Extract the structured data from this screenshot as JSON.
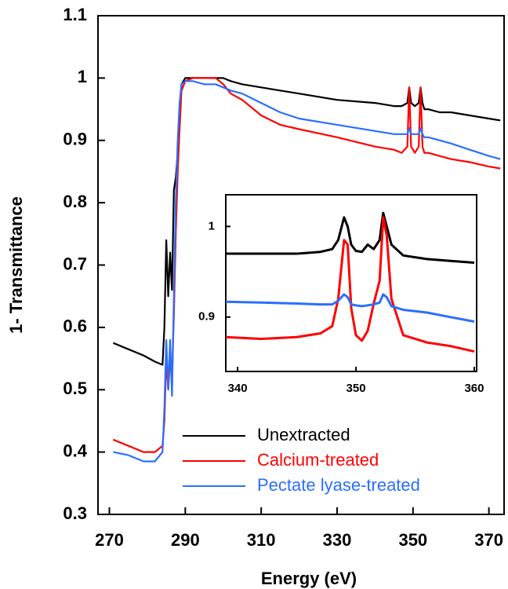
{
  "chart_data": [
    {
      "type": "line",
      "xlabel": "Energy (eV)",
      "ylabel": "1- Transmittance",
      "xlim": [
        267,
        374
      ],
      "ylim": [
        0.3,
        1.1
      ],
      "xticks": [
        270,
        290,
        310,
        330,
        350,
        370
      ],
      "yticks": [
        0.3,
        0.4,
        0.5,
        0.6,
        0.7,
        0.8,
        0.9,
        1,
        1.1
      ],
      "legend": "lower right",
      "x": [
        271,
        275,
        279,
        282,
        284,
        284.5,
        285,
        285.5,
        286,
        286.5,
        287,
        287.5,
        288,
        288.5,
        289,
        290,
        292,
        295,
        298,
        300,
        302,
        305,
        310,
        315,
        320,
        330,
        340,
        345,
        347,
        348.5,
        349,
        349.5,
        350.5,
        351.5,
        352,
        352.5,
        353,
        354,
        357,
        360,
        365,
        370,
        373
      ],
      "series": [
        {
          "name": "Unextracted",
          "color": "#000000",
          "values": [
            0.575,
            0.565,
            0.555,
            0.545,
            0.54,
            0.6,
            0.74,
            0.65,
            0.72,
            0.66,
            0.82,
            0.84,
            0.88,
            0.95,
            0.99,
            1.0,
            1.0,
            1.0,
            1.0,
            1.0,
            0.995,
            0.99,
            0.985,
            0.98,
            0.975,
            0.965,
            0.96,
            0.955,
            0.955,
            0.96,
            0.985,
            0.96,
            0.955,
            0.96,
            0.985,
            0.96,
            0.95,
            0.95,
            0.945,
            0.945,
            0.94,
            0.935,
            0.932
          ]
        },
        {
          "name": "Calcium-treated",
          "color": "#ff0000",
          "values": [
            0.42,
            0.41,
            0.4,
            0.4,
            0.41,
            0.45,
            0.55,
            0.5,
            0.55,
            0.52,
            0.62,
            0.75,
            0.85,
            0.92,
            0.98,
            0.995,
            1.0,
            1.0,
            1.0,
            0.99,
            0.975,
            0.965,
            0.94,
            0.925,
            0.918,
            0.905,
            0.89,
            0.885,
            0.88,
            0.89,
            0.985,
            0.89,
            0.88,
            0.89,
            0.985,
            0.89,
            0.88,
            0.88,
            0.875,
            0.87,
            0.865,
            0.858,
            0.855
          ]
        },
        {
          "name": "Pectate lyase-treated",
          "color": "#2a6fff",
          "values": [
            0.4,
            0.395,
            0.385,
            0.385,
            0.4,
            0.47,
            0.58,
            0.5,
            0.58,
            0.49,
            0.65,
            0.8,
            0.9,
            0.96,
            0.99,
            0.995,
            0.995,
            0.99,
            0.99,
            0.985,
            0.98,
            0.975,
            0.96,
            0.945,
            0.935,
            0.925,
            0.915,
            0.91,
            0.91,
            0.91,
            0.92,
            0.91,
            0.91,
            0.91,
            0.92,
            0.91,
            0.905,
            0.905,
            0.9,
            0.895,
            0.885,
            0.875,
            0.87
          ]
        }
      ]
    },
    {
      "type": "line",
      "xlim": [
        339,
        360.2
      ],
      "ylim": [
        0.84,
        1.035
      ],
      "xticks": [
        340,
        350,
        360
      ],
      "yticks": [
        0.9,
        1
      ],
      "x": [
        339,
        342,
        345,
        347,
        348,
        348.5,
        349,
        349.3,
        349.6,
        350,
        350.5,
        351,
        351.5,
        352,
        352.3,
        352.6,
        353,
        354,
        356,
        358,
        360
      ],
      "series": [
        {
          "color": "#000000",
          "values": [
            0.97,
            0.97,
            0.97,
            0.972,
            0.975,
            0.985,
            1.01,
            1.0,
            0.98,
            0.973,
            0.972,
            0.98,
            0.975,
            0.985,
            1.015,
            1.0,
            0.98,
            0.968,
            0.964,
            0.962,
            0.96
          ]
        },
        {
          "color": "#ff0000",
          "values": [
            0.878,
            0.876,
            0.878,
            0.882,
            0.89,
            0.92,
            0.985,
            0.98,
            0.91,
            0.88,
            0.874,
            0.885,
            0.915,
            0.94,
            1.01,
            0.99,
            0.92,
            0.88,
            0.872,
            0.868,
            0.862
          ]
        },
        {
          "color": "#2a6fff",
          "values": [
            0.917,
            0.916,
            0.915,
            0.914,
            0.914,
            0.918,
            0.925,
            0.922,
            0.914,
            0.913,
            0.912,
            0.913,
            0.914,
            0.916,
            0.925,
            0.922,
            0.912,
            0.908,
            0.905,
            0.9,
            0.895
          ]
        }
      ]
    }
  ]
}
